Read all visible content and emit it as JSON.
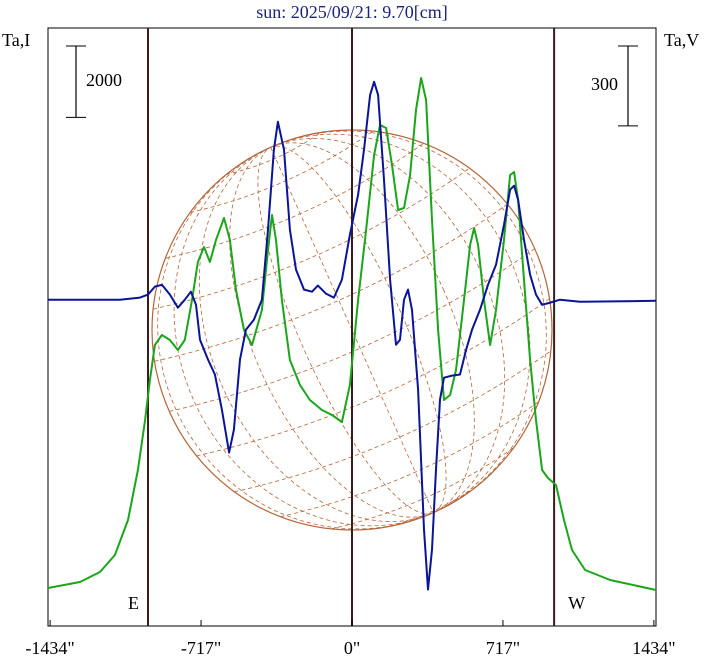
{
  "chart_data": {
    "type": "line",
    "title": "sun: 2025/09/21: 9.70[cm]",
    "ylabel": "Ta,I",
    "y2label": "Ta,V",
    "xlim": [
      -1444,
      1444
    ],
    "xticks": [
      {
        "value": -1434,
        "label": "-1434\""
      },
      {
        "value": -717,
        "label": "-717\""
      },
      {
        "value": 0,
        "label": "0\""
      },
      {
        "value": 717,
        "label": "717\""
      },
      {
        "value": 1434,
        "label": "1434\""
      }
    ],
    "ylim": [
      -1008,
      15736
    ],
    "y2lim": [
      -1225,
      1020
    ],
    "scale_bars": [
      2000,
      300
    ],
    "vlines": [
      -969,
      0,
      960
    ],
    "vline_color": "#3a1c1c",
    "annotations": [
      "E",
      "W"
    ],
    "series": [
      {
        "name": "Ta,I",
        "color": "#1aa51a",
        "x": [
          -1444,
          -1292,
          -1197,
          -1126,
          -1064,
          -1017,
          -983,
          -960,
          -936,
          -903,
          -865,
          -827,
          -794,
          -760,
          -732,
          -703,
          -675,
          -646,
          -608,
          -580,
          -551,
          -513,
          -475,
          -428,
          -399,
          -380,
          -361,
          -333,
          -295,
          -247,
          -200,
          -143,
          -95,
          -48,
          -10,
          29,
          67,
          105,
          133,
          162,
          190,
          219,
          247,
          276,
          304,
          328,
          352,
          380,
          409,
          437,
          466,
          494,
          532,
          561,
          580,
          599,
          627,
          656,
          684,
          722,
          751,
          770,
          789,
          817,
          846,
          874,
          903,
          931,
          969,
          1007,
          1045,
          1107,
          1226,
          1444
        ],
        "values": [
          56,
          224,
          504,
          980,
          1960,
          3360,
          4760,
          5880,
          6860,
          7140,
          7000,
          6720,
          7000,
          8120,
          9184,
          9604,
          9184,
          9800,
          10416,
          9800,
          8400,
          7280,
          6860,
          7840,
          9520,
          10500,
          9800,
          8120,
          6440,
          5740,
          5320,
          5040,
          4900,
          4704,
          5740,
          8120,
          10080,
          12180,
          13020,
          12936,
          11900,
          10640,
          10696,
          11620,
          13440,
          14336,
          13720,
          10360,
          7280,
          5320,
          5460,
          6160,
          8120,
          9660,
          10136,
          9660,
          8120,
          6860,
          7840,
          9800,
          11620,
          11704,
          10920,
          8680,
          6440,
          4760,
          3360,
          3136,
          2940,
          1960,
          1120,
          560,
          280,
          0
        ]
      },
      {
        "name": "Ta,V",
        "color": "#0a1496",
        "axis": "y2",
        "x": [
          -1444,
          -1102,
          -1007,
          -969,
          -936,
          -903,
          -865,
          -827,
          -794,
          -765,
          -741,
          -722,
          -684,
          -651,
          -618,
          -584,
          -561,
          -532,
          -504,
          -466,
          -428,
          -399,
          -371,
          -352,
          -323,
          -295,
          -266,
          -228,
          -190,
          -162,
          -124,
          -86,
          -48,
          -10,
          29,
          57,
          86,
          105,
          124,
          152,
          181,
          209,
          228,
          247,
          266,
          285,
          314,
          342,
          361,
          380,
          399,
          418,
          437,
          475,
          513,
          542,
          570,
          608,
          646,
          684,
          722,
          751,
          770,
          789,
          817,
          846,
          874,
          903,
          941,
          988,
          1083,
          1444
        ],
        "values": [
          0,
          0,
          8,
          19,
          49,
          56,
          19,
          -30,
          0,
          30,
          -19,
          -150,
          -225,
          -281,
          -413,
          -574,
          -488,
          -225,
          -113,
          -75,
          0,
          263,
          563,
          668,
          563,
          263,
          113,
          38,
          30,
          53,
          23,
          8,
          75,
          244,
          394,
          563,
          769,
          818,
          769,
          450,
          75,
          -169,
          -150,
          0,
          38,
          -38,
          -338,
          -863,
          -1088,
          -938,
          -638,
          -375,
          -293,
          -285,
          -281,
          -188,
          -113,
          -38,
          56,
          131,
          281,
          413,
          428,
          375,
          225,
          94,
          19,
          -19,
          -11,
          0,
          -8,
          -4
        ]
      }
    ]
  }
}
